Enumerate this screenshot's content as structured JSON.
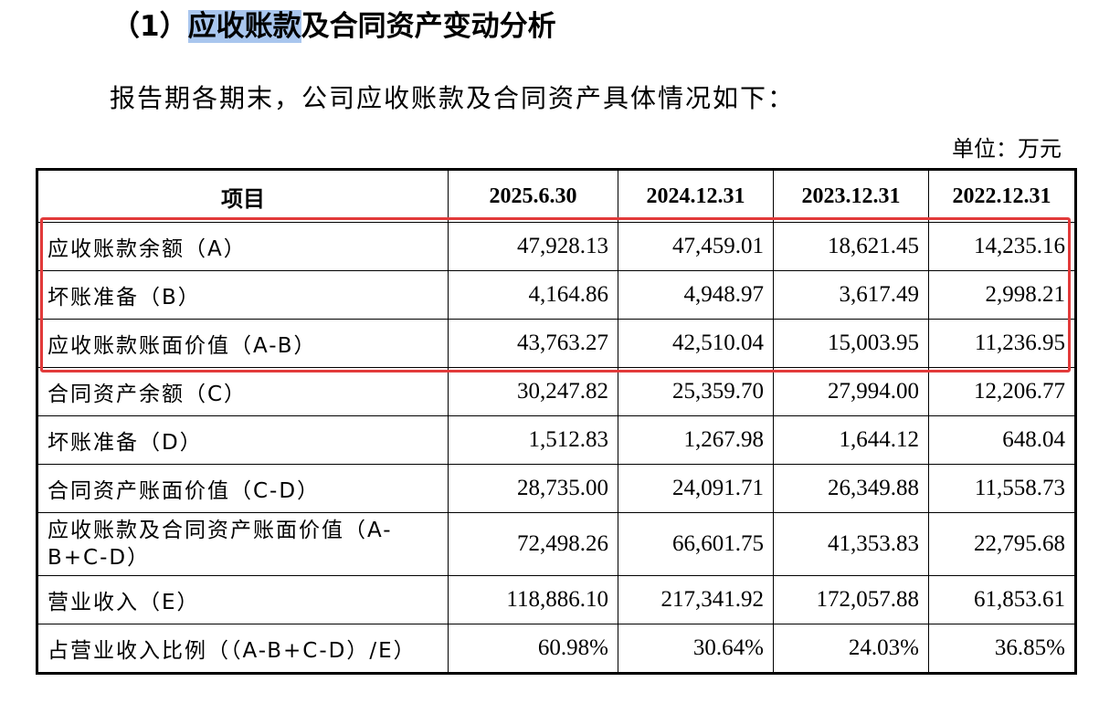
{
  "heading": {
    "prefix": "（1）",
    "highlight": "应收账款",
    "rest": "及合同资产变动分析"
  },
  "intro": "报告期各期末，公司应收账款及合同资产具体情况如下：",
  "unit": "单位：万元",
  "table": {
    "headers": [
      "项目",
      "2025.6.30",
      "2024.12.31",
      "2023.12.31",
      "2022.12.31"
    ],
    "rows": [
      {
        "label": "应收账款余额（A）",
        "values": [
          "47,928.13",
          "47,459.01",
          "18,621.45",
          "14,235.16"
        ]
      },
      {
        "label": "坏账准备（B）",
        "values": [
          "4,164.86",
          "4,948.97",
          "3,617.49",
          "2,998.21"
        ]
      },
      {
        "label": "应收账款账面价值（A-B）",
        "values": [
          "43,763.27",
          "42,510.04",
          "15,003.95",
          "11,236.95"
        ]
      },
      {
        "label": "合同资产余额（C）",
        "values": [
          "30,247.82",
          "25,359.70",
          "27,994.00",
          "12,206.77"
        ]
      },
      {
        "label": "坏账准备（D）",
        "values": [
          "1,512.83",
          "1,267.98",
          "1,644.12",
          "648.04"
        ]
      },
      {
        "label": "合同资产账面价值（C-D）",
        "values": [
          "28,735.00",
          "24,091.71",
          "26,349.88",
          "11,558.73"
        ]
      },
      {
        "label": "应收账款及合同资产账面价值（A-B+C-D）",
        "values": [
          "72,498.26",
          "66,601.75",
          "41,353.83",
          "22,795.68"
        ]
      },
      {
        "label": "营业收入（E）",
        "values": [
          "118,886.10",
          "217,341.92",
          "172,057.88",
          "61,853.61"
        ]
      },
      {
        "label": "占营业收入比例（（A-B+C-D）/E）",
        "values": [
          "60.98%",
          "30.64%",
          "24.03%",
          "36.85%"
        ]
      }
    ]
  },
  "colors": {
    "highlight": "#a9c6ee",
    "redbox": "#e23a3a"
  }
}
